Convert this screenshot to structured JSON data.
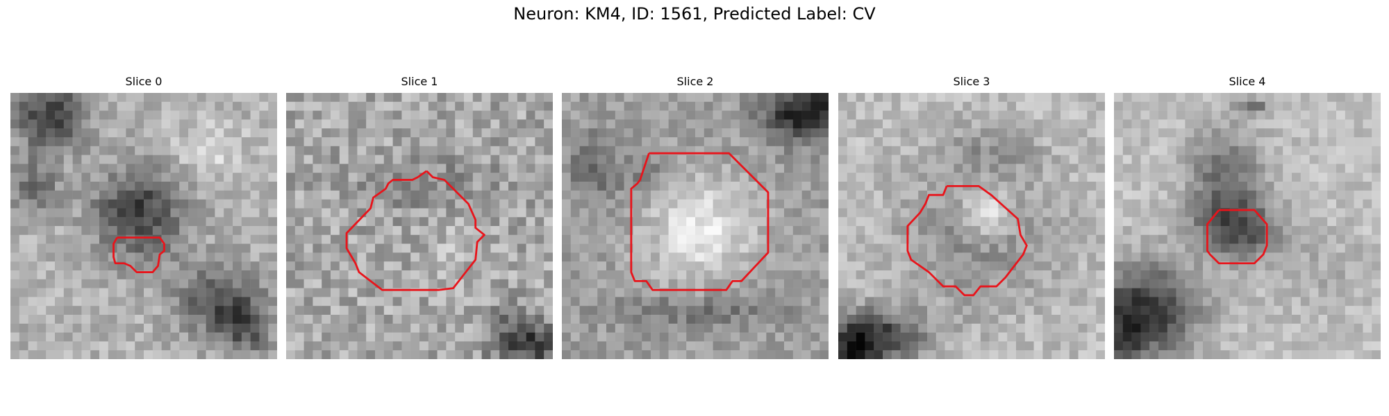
{
  "figure": {
    "title": "Neuron: KM4, ID: 1561, Predicted Label: CV"
  },
  "colors": {
    "contour": "#e8141b",
    "colormap": "gray"
  },
  "panels": [
    {
      "title": "Slice 0",
      "texture": "dark-corners-small-roi"
    },
    {
      "title": "Slice 1",
      "texture": "noisy-medium-roi"
    },
    {
      "title": "Slice 2",
      "texture": "bright-center-large-roi"
    },
    {
      "title": "Slice 3",
      "texture": "bright-ring-medium-roi"
    },
    {
      "title": "Slice 4",
      "texture": "dark-blob-small-roi"
    }
  ]
}
